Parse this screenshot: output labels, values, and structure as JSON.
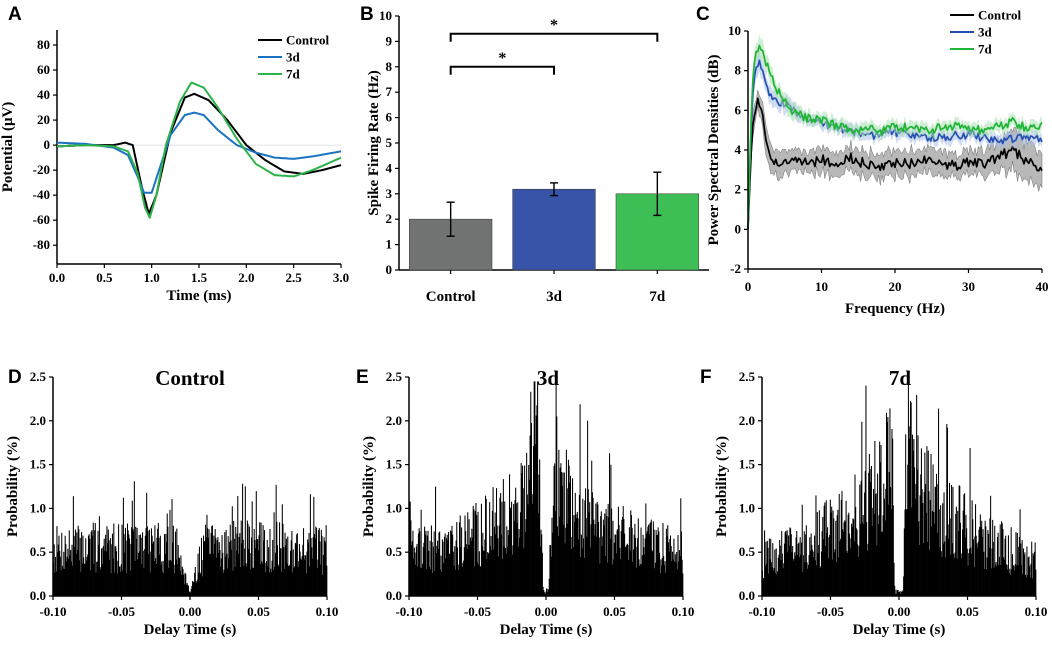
{
  "panels": {
    "A": {
      "label": "A",
      "chart_data": {
        "type": "line",
        "xlabel": "Time (ms)",
        "ylabel": "Potential  (μV)",
        "xlim": [
          0.0,
          3.0
        ],
        "ylim": [
          -95,
          92
        ],
        "xticks": [
          "0.0",
          "0.5",
          "1.0",
          "1.5",
          "2.0",
          "2.5",
          "3.0"
        ],
        "yticks": [
          "80",
          "60",
          "40",
          "20",
          "0",
          "-20",
          "-40",
          "-60",
          "-80"
        ],
        "legend": [
          "Control",
          "3d",
          "7d"
        ],
        "series": [
          {
            "name": "Control",
            "color": "#000000",
            "x": [
              0,
              0.3,
              0.6,
              0.72,
              0.8,
              0.9,
              0.97,
              1.05,
              1.2,
              1.35,
              1.45,
              1.6,
              1.8,
              2.0,
              2.2,
              2.4,
              2.6,
              2.8,
              3.0
            ],
            "y": [
              -1,
              0,
              0,
              2,
              0,
              -35,
              -55,
              -40,
              10,
              38,
              41,
              36,
              20,
              0,
              -12,
              -21,
              -23,
              -20,
              -16
            ]
          },
          {
            "name": "3d",
            "color": "#1a73c2",
            "x": [
              0,
              0.3,
              0.6,
              0.75,
              0.85,
              0.92,
              1.0,
              1.1,
              1.2,
              1.35,
              1.45,
              1.55,
              1.7,
              1.9,
              2.1,
              2.3,
              2.5,
              2.7,
              3.0
            ],
            "y": [
              2,
              1,
              -2,
              -8,
              -25,
              -38,
              -38,
              -15,
              8,
              24,
              26,
              24,
              12,
              0,
              -6,
              -10,
              -11,
              -9,
              -5
            ]
          },
          {
            "name": "7d",
            "color": "#2db34a",
            "x": [
              0,
              0.3,
              0.6,
              0.75,
              0.85,
              0.93,
              0.98,
              1.05,
              1.15,
              1.3,
              1.42,
              1.55,
              1.7,
              1.9,
              2.1,
              2.3,
              2.5,
              2.7,
              3.0
            ],
            "y": [
              -1,
              0,
              -1,
              -5,
              -22,
              -50,
              -58,
              -40,
              0,
              35,
              50,
              46,
              30,
              5,
              -15,
              -24,
              -25,
              -20,
              -10
            ]
          }
        ]
      }
    },
    "B": {
      "label": "B",
      "chart_data": {
        "type": "bar",
        "ylabel": "Spike Firing Rate (Hz)",
        "categories": [
          "Control",
          "3d",
          "7d"
        ],
        "values": [
          2.0,
          3.18,
          3.0
        ],
        "errors": [
          0.67,
          0.25,
          0.85
        ],
        "colors": [
          "#717372",
          "#3754a8",
          "#3dbf55"
        ],
        "ylim": [
          0,
          10
        ],
        "yticks": [
          "0",
          "1",
          "2",
          "3",
          "4",
          "5",
          "6",
          "7",
          "8",
          "9",
          "10"
        ],
        "annotations": [
          {
            "from": "Control",
            "to": "3d",
            "text": "*",
            "y": 8.0
          },
          {
            "from": "Control",
            "to": "7d",
            "text": "*",
            "y": 9.3
          }
        ]
      }
    },
    "C": {
      "label": "C",
      "chart_data": {
        "type": "line",
        "xlabel": "Frequency (Hz)",
        "ylabel": "Power Spectral Densities (dB)",
        "xlim": [
          0,
          40
        ],
        "ylim": [
          -2,
          10
        ],
        "xticks": [
          "0",
          "10",
          "20",
          "30",
          "40"
        ],
        "yticks": [
          "10",
          "8",
          "6",
          "4",
          "2",
          "0",
          "-2"
        ],
        "legend": [
          "Control",
          "3d",
          "7d"
        ],
        "series": [
          {
            "name": "Control",
            "color": "#000000",
            "band": "#a0a0a0",
            "x": [
              0,
              0.5,
              1,
              1.5,
              2,
              3,
              4,
              6,
              8,
              10,
              12,
              14,
              16,
              18,
              20,
              22,
              24,
              26,
              28,
              30,
              32,
              34,
              35,
              36,
              38,
              40
            ],
            "y": [
              0,
              4.5,
              6.2,
              6.5,
              5.6,
              3.6,
              3.3,
              3.6,
              3.3,
              3.5,
              3.3,
              3.6,
              3.3,
              3.2,
              3.4,
              3.3,
              3.5,
              3.3,
              3.2,
              3.4,
              3.3,
              3.6,
              3.8,
              4.0,
              3.4,
              3.0
            ],
            "spread": [
              0,
              0.6,
              0.5,
              0.5,
              0.6,
              0.6,
              0.6,
              0.6,
              0.5,
              0.6,
              0.6,
              0.6,
              0.6,
              0.6,
              0.6,
              0.6,
              0.6,
              0.6,
              0.6,
              0.6,
              0.6,
              0.8,
              0.8,
              0.9,
              0.9,
              0.9
            ]
          },
          {
            "name": "3d",
            "color": "#2450b4",
            "band": "#a9bfe6",
            "x": [
              0,
              0.5,
              1,
              1.5,
              2,
              3,
              4,
              5,
              6,
              8,
              10,
              12,
              14,
              16,
              18,
              20,
              22,
              24,
              26,
              28,
              30,
              32,
              34,
              36,
              38,
              40
            ],
            "y": [
              0,
              6.0,
              8.2,
              8.4,
              7.9,
              6.8,
              6.5,
              6.3,
              6.0,
              5.5,
              5.4,
              5.1,
              4.9,
              4.8,
              4.7,
              4.9,
              4.8,
              4.7,
              4.6,
              4.7,
              4.8,
              4.6,
              4.5,
              4.6,
              4.7,
              4.6
            ],
            "spread": [
              0,
              0.5,
              0.5,
              0.5,
              0.5,
              0.4,
              0.4,
              0.4,
              0.4,
              0.3,
              0.3,
              0.3,
              0.3,
              0.3,
              0.3,
              0.3,
              0.3,
              0.3,
              0.3,
              0.3,
              0.3,
              0.3,
              0.3,
              0.3,
              0.3,
              0.3
            ]
          },
          {
            "name": "7d",
            "color": "#1fb534",
            "band": "#a8e0b0",
            "x": [
              0,
              0.5,
              1,
              1.5,
              2,
              3,
              4,
              5,
              6,
              8,
              10,
              12,
              14,
              16,
              18,
              20,
              22,
              24,
              26,
              28,
              30,
              32,
              34,
              36,
              38,
              40
            ],
            "y": [
              0,
              6.5,
              9.0,
              9.2,
              8.8,
              8.0,
              7.0,
              6.5,
              6.0,
              5.6,
              5.5,
              5.2,
              5.0,
              5.1,
              4.9,
              5.2,
              5.1,
              5.0,
              5.1,
              5.2,
              5.0,
              5.0,
              5.2,
              5.4,
              5.1,
              5.3
            ],
            "spread": [
              0,
              0.5,
              0.5,
              0.5,
              0.5,
              0.4,
              0.4,
              0.4,
              0.4,
              0.3,
              0.3,
              0.3,
              0.3,
              0.3,
              0.3,
              0.3,
              0.3,
              0.3,
              0.3,
              0.3,
              0.3,
              0.3,
              0.3,
              0.3,
              0.3,
              0.3
            ]
          }
        ]
      }
    },
    "D": {
      "label": "D",
      "chart_data": {
        "type": "bar",
        "title": "Control",
        "xlabel": "Delay Time (s)",
        "ylabel": "Probability (%)",
        "xlim": [
          -0.1,
          0.1
        ],
        "ylim": [
          0,
          2.5
        ],
        "xticks": [
          "-0.10",
          "-0.05",
          "0.00",
          "0.05",
          "0.10"
        ],
        "yticks": [
          "2.5",
          "2.0",
          "1.5",
          "1.0",
          "0.5",
          "0.0"
        ],
        "bins": 400,
        "envelope": {
          "x": [
            0,
            0.004,
            0.01,
            0.03,
            0.06,
            0.1
          ],
          "y": [
            0.05,
            0.3,
            0.6,
            0.65,
            0.63,
            0.6
          ]
        },
        "seed": 7
      }
    },
    "E": {
      "label": "E",
      "chart_data": {
        "type": "bar",
        "title": "3d",
        "xlabel": "Delay Time (s)",
        "ylabel": "Probability (%)",
        "xlim": [
          -0.1,
          0.1
        ],
        "ylim": [
          0,
          2.5
        ],
        "xticks": [
          "-0.10",
          "-0.05",
          "0.00",
          "0.05",
          "0.10"
        ],
        "yticks": [
          "2.5",
          "2.0",
          "1.5",
          "1.0",
          "0.5",
          "0.0"
        ],
        "bins": 400,
        "envelope": {
          "x": [
            0,
            0.002,
            0.004,
            0.006,
            0.01,
            0.02,
            0.05,
            0.1
          ],
          "y": [
            0.05,
            0.1,
            1.2,
            1.65,
            1.5,
            1.15,
            0.8,
            0.55
          ]
        },
        "seed": 19
      }
    },
    "F": {
      "label": "F",
      "chart_data": {
        "type": "bar",
        "title": "7d",
        "xlabel": "Delay Time (s)",
        "ylabel": "Probability (%)",
        "xlim": [
          -0.1,
          0.1
        ],
        "ylim": [
          0,
          2.5
        ],
        "xticks": [
          "-0.10",
          "-0.05",
          "0.00",
          "0.05",
          "0.10"
        ],
        "yticks": [
          "2.5",
          "2.0",
          "1.5",
          "1.0",
          "0.5",
          "0.0"
        ],
        "bins": 400,
        "envelope": {
          "x": [
            0,
            0.003,
            0.005,
            0.008,
            0.015,
            0.03,
            0.06,
            0.1
          ],
          "y": [
            0.05,
            0.05,
            1.6,
            1.75,
            1.4,
            1.1,
            0.75,
            0.45
          ]
        },
        "seed": 31
      }
    }
  }
}
